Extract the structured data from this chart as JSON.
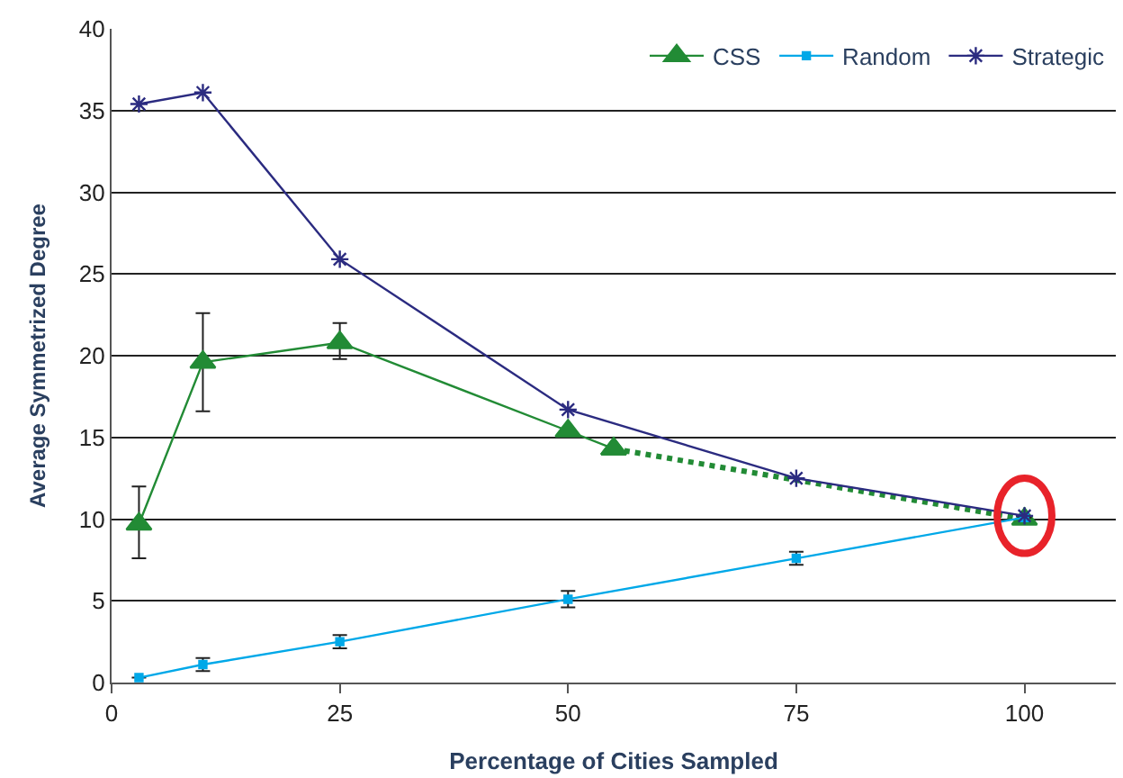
{
  "chart_data": {
    "type": "line",
    "xlabel": "Percentage of Cities Sampled",
    "ylabel": "Average Symmetrized Degree",
    "xlim": [
      0,
      110
    ],
    "xticks": [
      0,
      25,
      50,
      75,
      100
    ],
    "ylim": [
      0,
      40
    ],
    "yticks": [
      0,
      5,
      10,
      15,
      20,
      25,
      30,
      35,
      40
    ],
    "grid": "y",
    "legend": "top right",
    "line_style": "solid",
    "series": [
      {
        "name": "CSS",
        "color": "#228b35",
        "marker": "triangle",
        "x": [
          3,
          10,
          25,
          50,
          55
        ],
        "values": [
          9.7,
          19.6,
          20.8,
          15.4,
          14.3
        ],
        "errors": [
          [
            7.6,
            12.0
          ],
          [
            16.6,
            22.6
          ],
          [
            19.8,
            22.0
          ],
          null,
          null
        ]
      },
      {
        "color": "#228b35",
        "marker": "triangle",
        "line_style": "dotted",
        "x": [
          55,
          100
        ],
        "values": [
          14.3,
          10.0
        ]
      },
      {
        "name": "Random",
        "color": "#00a8e8",
        "marker": "square",
        "x": [
          3,
          10,
          25,
          50,
          75,
          100
        ],
        "values": [
          0.3,
          1.1,
          2.5,
          5.1,
          7.6,
          10.1
        ],
        "errors": [
          null,
          0.4,
          0.4,
          0.5,
          0.4,
          null
        ]
      },
      {
        "name": "Strategic",
        "color": "#2b2b80",
        "marker": "cross",
        "x": [
          3,
          10,
          25,
          50,
          75,
          100
        ],
        "values": [
          35.4,
          36.1,
          25.9,
          16.7,
          12.5,
          10.2
        ]
      }
    ]
  }
}
